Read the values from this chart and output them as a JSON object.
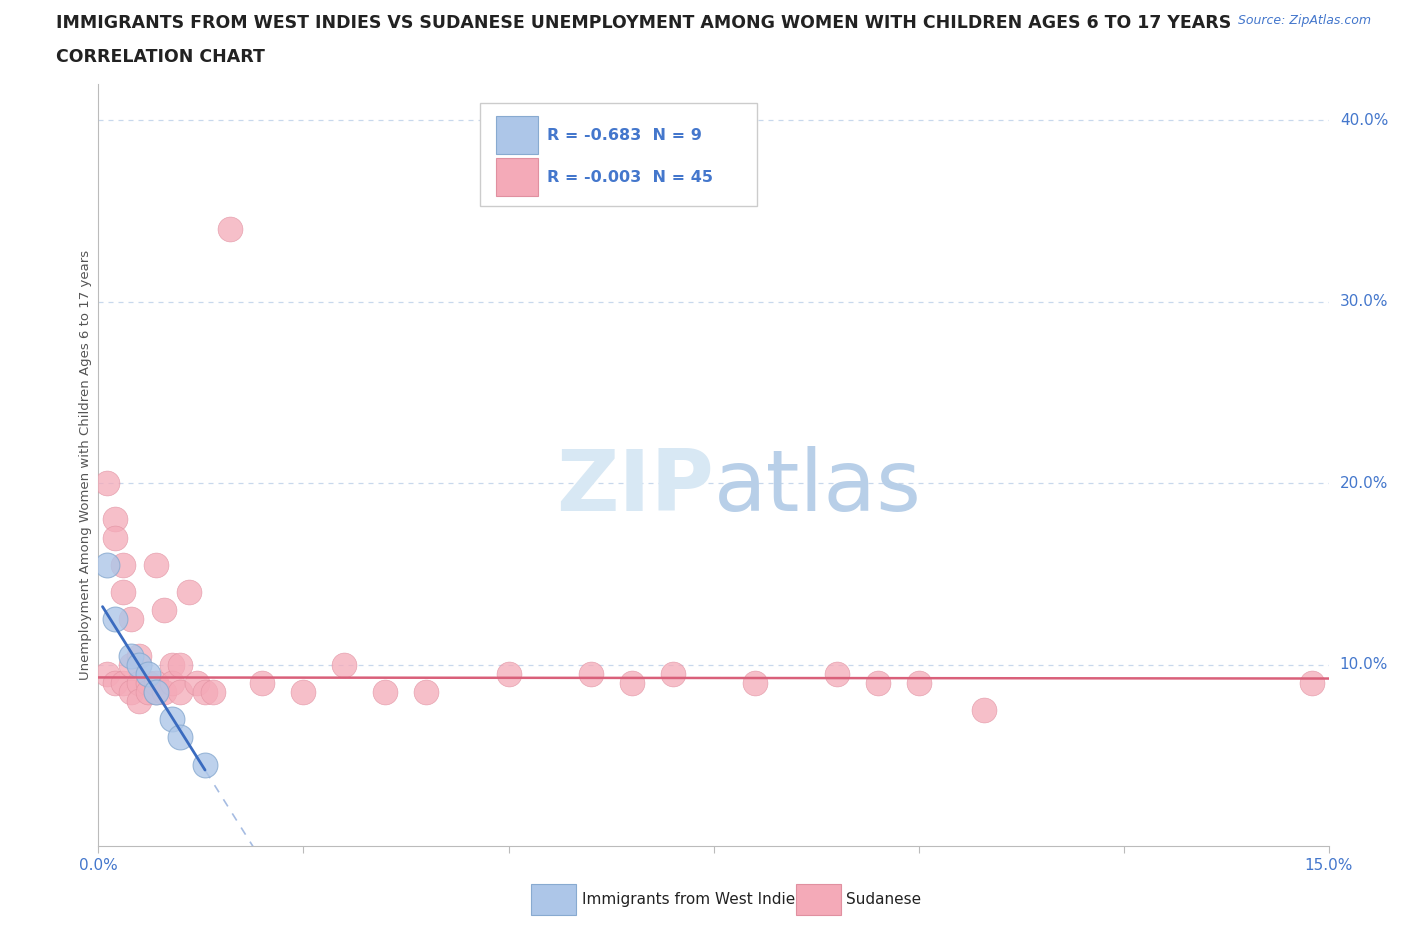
{
  "title_line1": "IMMIGRANTS FROM WEST INDIES VS SUDANESE UNEMPLOYMENT AMONG WOMEN WITH CHILDREN AGES 6 TO 17 YEARS",
  "title_line2": "CORRELATION CHART",
  "source": "Source: ZipAtlas.com",
  "ylabel": "Unemployment Among Women with Children Ages 6 to 17 years",
  "xlim": [
    0.0,
    0.15
  ],
  "ylim": [
    0.0,
    0.42
  ],
  "legend1_r": "-0.683",
  "legend1_n": "9",
  "legend2_r": "-0.003",
  "legend2_n": "45",
  "blue_scatter_x": [
    0.001,
    0.002,
    0.004,
    0.005,
    0.006,
    0.007,
    0.009,
    0.01,
    0.013
  ],
  "blue_scatter_y": [
    0.155,
    0.125,
    0.105,
    0.1,
    0.095,
    0.085,
    0.07,
    0.06,
    0.045
  ],
  "pink_scatter_x": [
    0.001,
    0.001,
    0.002,
    0.002,
    0.002,
    0.003,
    0.003,
    0.003,
    0.004,
    0.004,
    0.004,
    0.005,
    0.005,
    0.005,
    0.006,
    0.006,
    0.007,
    0.007,
    0.007,
    0.008,
    0.008,
    0.009,
    0.009,
    0.01,
    0.01,
    0.011,
    0.012,
    0.013,
    0.014,
    0.016,
    0.02,
    0.025,
    0.03,
    0.035,
    0.04,
    0.05,
    0.06,
    0.065,
    0.07,
    0.08,
    0.09,
    0.095,
    0.1,
    0.108,
    0.148
  ],
  "pink_scatter_y": [
    0.2,
    0.095,
    0.18,
    0.17,
    0.09,
    0.155,
    0.14,
    0.09,
    0.125,
    0.1,
    0.085,
    0.105,
    0.09,
    0.08,
    0.09,
    0.085,
    0.155,
    0.09,
    0.085,
    0.13,
    0.085,
    0.1,
    0.09,
    0.1,
    0.085,
    0.14,
    0.09,
    0.085,
    0.085,
    0.34,
    0.09,
    0.085,
    0.1,
    0.085,
    0.085,
    0.095,
    0.095,
    0.09,
    0.095,
    0.09,
    0.095,
    0.09,
    0.09,
    0.075,
    0.09
  ],
  "blue_color": "#adc6e8",
  "pink_color": "#f4aab8",
  "blue_line_color": "#3a6bbf",
  "pink_line_color": "#d9607a",
  "grid_color": "#c8d8ec",
  "background_color": "#ffffff",
  "watermark_color": "#d8e8f4",
  "title_color": "#222222",
  "axis_label_color": "#555555",
  "tick_color": "#4477cc",
  "figsize": [
    14.06,
    9.3
  ],
  "dpi": 100
}
